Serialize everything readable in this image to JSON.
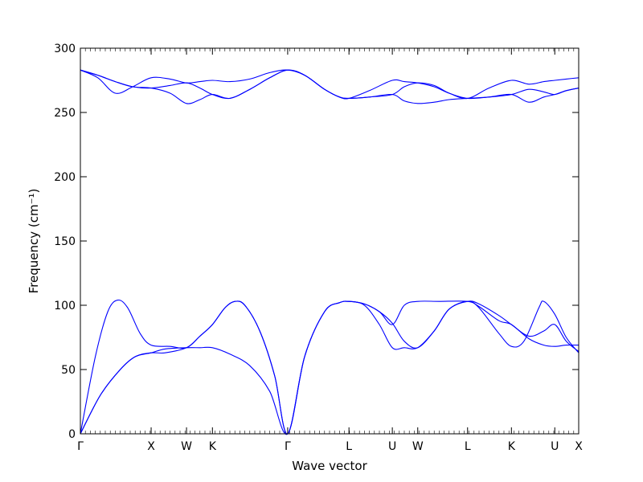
{
  "chart_data": {
    "type": "line",
    "xlabel": "Wave vector",
    "ylabel": "Frequency (cm⁻¹)",
    "ylim": [
      0,
      300
    ],
    "y_ticks": [
      0,
      50,
      100,
      150,
      200,
      250,
      300
    ],
    "x_ticks": [
      {
        "label": "Γ",
        "x": 0
      },
      {
        "label": "X",
        "x": 0.142
      },
      {
        "label": "W",
        "x": 0.213
      },
      {
        "label": "K",
        "x": 0.265
      },
      {
        "label": "Γ",
        "x": 0.416
      },
      {
        "label": "L",
        "x": 0.539
      },
      {
        "label": "U",
        "x": 0.626
      },
      {
        "label": "W",
        "x": 0.677
      },
      {
        "label": "L",
        "x": 0.777
      },
      {
        "label": "K",
        "x": 0.865
      },
      {
        "label": "U",
        "x": 0.952
      },
      {
        "label": "X",
        "x": 1.0
      }
    ],
    "xlim": [
      0,
      1
    ],
    "grid": false,
    "line_color": "#0000ff",
    "series": [
      {
        "values": [
          [
            0,
            283
          ],
          [
            0.035,
            279
          ],
          [
            0.07,
            274
          ],
          [
            0.105,
            270
          ],
          [
            0.142,
            269
          ],
          [
            0.18,
            271
          ],
          [
            0.213,
            273
          ],
          [
            0.24,
            269
          ],
          [
            0.265,
            264
          ],
          [
            0.3,
            261
          ],
          [
            0.34,
            268
          ],
          [
            0.38,
            277
          ],
          [
            0.416,
            283
          ],
          [
            0.45,
            279
          ],
          [
            0.49,
            268
          ],
          [
            0.52,
            262
          ],
          [
            0.539,
            261
          ],
          [
            0.58,
            262
          ],
          [
            0.626,
            264
          ],
          [
            0.65,
            270
          ],
          [
            0.677,
            273
          ],
          [
            0.71,
            271
          ],
          [
            0.74,
            265
          ],
          [
            0.777,
            261
          ],
          [
            0.82,
            262
          ],
          [
            0.865,
            264
          ],
          [
            0.9,
            268
          ],
          [
            0.93,
            266
          ],
          [
            0.952,
            264
          ],
          [
            0.975,
            267
          ],
          [
            1.0,
            269
          ]
        ]
      },
      {
        "values": [
          [
            0,
            283
          ],
          [
            0.035,
            279
          ],
          [
            0.07,
            274
          ],
          [
            0.105,
            270
          ],
          [
            0.142,
            269
          ],
          [
            0.18,
            265
          ],
          [
            0.213,
            257
          ],
          [
            0.24,
            260
          ],
          [
            0.265,
            264
          ],
          [
            0.3,
            261
          ],
          [
            0.34,
            268
          ],
          [
            0.38,
            277
          ],
          [
            0.416,
            283
          ],
          [
            0.45,
            279
          ],
          [
            0.49,
            268
          ],
          [
            0.52,
            262
          ],
          [
            0.539,
            261
          ],
          [
            0.58,
            262
          ],
          [
            0.626,
            264
          ],
          [
            0.65,
            259
          ],
          [
            0.677,
            257
          ],
          [
            0.71,
            258
          ],
          [
            0.74,
            260
          ],
          [
            0.777,
            261
          ],
          [
            0.82,
            262
          ],
          [
            0.865,
            264
          ],
          [
            0.9,
            258
          ],
          [
            0.93,
            262
          ],
          [
            0.952,
            264
          ],
          [
            0.975,
            267
          ],
          [
            1.0,
            269
          ]
        ]
      },
      {
        "values": [
          [
            0,
            283
          ],
          [
            0.035,
            277
          ],
          [
            0.07,
            265
          ],
          [
            0.105,
            270
          ],
          [
            0.142,
            277
          ],
          [
            0.18,
            276
          ],
          [
            0.213,
            273
          ],
          [
            0.24,
            274
          ],
          [
            0.265,
            275
          ],
          [
            0.3,
            274
          ],
          [
            0.34,
            276
          ],
          [
            0.38,
            281
          ],
          [
            0.416,
            283
          ],
          [
            0.45,
            279
          ],
          [
            0.49,
            268
          ],
          [
            0.52,
            262
          ],
          [
            0.539,
            261
          ],
          [
            0.58,
            267
          ],
          [
            0.626,
            275
          ],
          [
            0.65,
            274
          ],
          [
            0.677,
            273
          ],
          [
            0.71,
            270
          ],
          [
            0.74,
            265
          ],
          [
            0.777,
            261
          ],
          [
            0.82,
            269
          ],
          [
            0.865,
            275
          ],
          [
            0.9,
            272
          ],
          [
            0.93,
            274
          ],
          [
            0.952,
            275
          ],
          [
            0.975,
            276
          ],
          [
            1.0,
            277
          ]
        ]
      },
      {
        "values": [
          [
            0,
            0
          ],
          [
            0.03,
            60
          ],
          [
            0.055,
            95
          ],
          [
            0.075,
            104
          ],
          [
            0.095,
            98
          ],
          [
            0.12,
            78
          ],
          [
            0.142,
            69
          ],
          [
            0.18,
            68
          ],
          [
            0.213,
            67
          ],
          [
            0.24,
            76
          ],
          [
            0.265,
            85
          ],
          [
            0.29,
            98
          ],
          [
            0.31,
            103
          ],
          [
            0.33,
            100
          ],
          [
            0.36,
            80
          ],
          [
            0.39,
            45
          ],
          [
            0.416,
            0
          ],
          [
            0.45,
            60
          ],
          [
            0.49,
            95
          ],
          [
            0.52,
            102
          ],
          [
            0.539,
            103
          ],
          [
            0.57,
            101
          ],
          [
            0.6,
            95
          ],
          [
            0.626,
            85
          ],
          [
            0.65,
            100
          ],
          [
            0.677,
            103
          ],
          [
            0.72,
            103
          ],
          [
            0.777,
            103
          ],
          [
            0.8,
            99
          ],
          [
            0.84,
            88
          ],
          [
            0.865,
            85
          ],
          [
            0.9,
            74
          ],
          [
            0.93,
            69
          ],
          [
            0.952,
            68
          ],
          [
            0.975,
            69
          ],
          [
            1.0,
            69
          ]
        ]
      },
      {
        "values": [
          [
            0,
            0
          ],
          [
            0.04,
            30
          ],
          [
            0.08,
            50
          ],
          [
            0.11,
            60
          ],
          [
            0.142,
            63
          ],
          [
            0.17,
            66
          ],
          [
            0.213,
            67
          ],
          [
            0.24,
            67
          ],
          [
            0.265,
            67
          ],
          [
            0.3,
            62
          ],
          [
            0.34,
            53
          ],
          [
            0.38,
            33
          ],
          [
            0.416,
            0
          ],
          [
            0.45,
            60
          ],
          [
            0.49,
            95
          ],
          [
            0.52,
            102
          ],
          [
            0.539,
            103
          ],
          [
            0.57,
            101
          ],
          [
            0.6,
            95
          ],
          [
            0.626,
            86
          ],
          [
            0.65,
            72
          ],
          [
            0.677,
            67
          ],
          [
            0.71,
            80
          ],
          [
            0.74,
            97
          ],
          [
            0.777,
            103
          ],
          [
            0.8,
            101
          ],
          [
            0.84,
            92
          ],
          [
            0.865,
            85
          ],
          [
            0.9,
            76
          ],
          [
            0.93,
            80
          ],
          [
            0.952,
            85
          ],
          [
            0.975,
            72
          ],
          [
            1.0,
            64
          ]
        ]
      },
      {
        "values": [
          [
            0,
            0
          ],
          [
            0.04,
            30
          ],
          [
            0.08,
            50
          ],
          [
            0.11,
            60
          ],
          [
            0.142,
            63
          ],
          [
            0.17,
            63
          ],
          [
            0.213,
            67
          ],
          [
            0.24,
            76
          ],
          [
            0.265,
            85
          ],
          [
            0.29,
            98
          ],
          [
            0.31,
            103
          ],
          [
            0.33,
            100
          ],
          [
            0.36,
            80
          ],
          [
            0.39,
            45
          ],
          [
            0.416,
            0
          ],
          [
            0.45,
            60
          ],
          [
            0.49,
            95
          ],
          [
            0.52,
            102
          ],
          [
            0.539,
            103
          ],
          [
            0.57,
            100
          ],
          [
            0.6,
            85
          ],
          [
            0.626,
            67
          ],
          [
            0.65,
            67
          ],
          [
            0.677,
            67
          ],
          [
            0.71,
            80
          ],
          [
            0.74,
            97
          ],
          [
            0.777,
            103
          ],
          [
            0.8,
            98
          ],
          [
            0.84,
            78
          ],
          [
            0.865,
            68
          ],
          [
            0.89,
            72
          ],
          [
            0.92,
            98
          ],
          [
            0.93,
            103
          ],
          [
            0.952,
            93
          ],
          [
            0.975,
            75
          ],
          [
            1.0,
            63
          ]
        ]
      }
    ]
  }
}
